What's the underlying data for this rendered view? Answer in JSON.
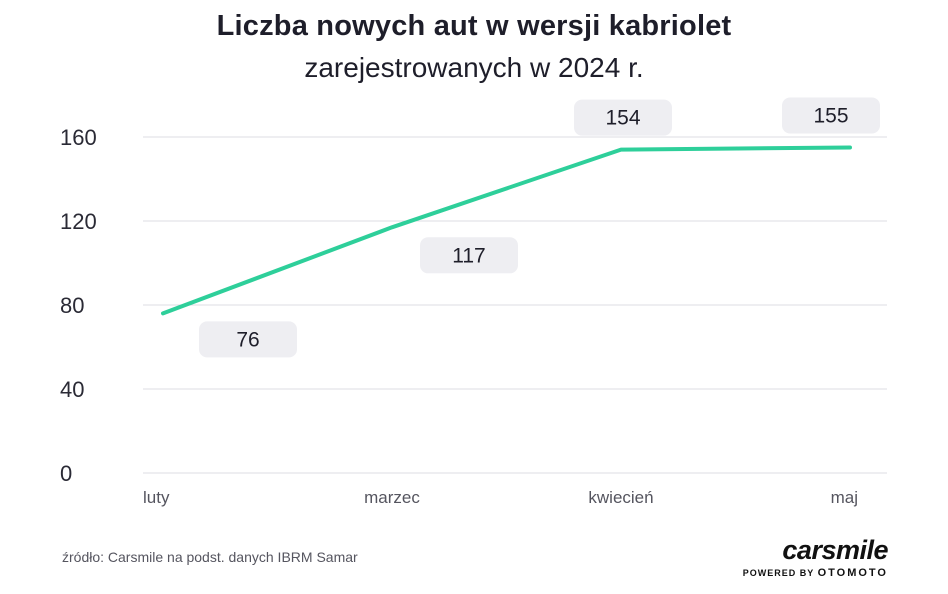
{
  "header": {
    "title": "Liczba nowych aut w wersji kabriolet",
    "subtitle": "zarejestrowanych w 2024 r."
  },
  "chart_data": {
    "type": "line",
    "title": "Liczba nowych aut w wersji kabriolet",
    "subtitle": "zarejestrowanych w 2024 r.",
    "categories": [
      "luty",
      "marzec",
      "kwiecień",
      "maj"
    ],
    "series": [
      {
        "values": [
          76,
          117,
          154,
          155
        ],
        "color": "#2ecf9a"
      }
    ],
    "data_labels": [
      "76",
      "117",
      "154",
      "155"
    ],
    "yticks": [
      0,
      40,
      80,
      120,
      160
    ],
    "ylim": [
      0,
      160
    ],
    "grid": true,
    "label_box_color": "#eeeef2"
  },
  "footer": {
    "source": "źródło: Carsmile na podst. danych IBRM Samar",
    "logo_name": "carsmile",
    "logo_powered": "POWERED BY",
    "logo_brand": "OTOMOTO"
  }
}
